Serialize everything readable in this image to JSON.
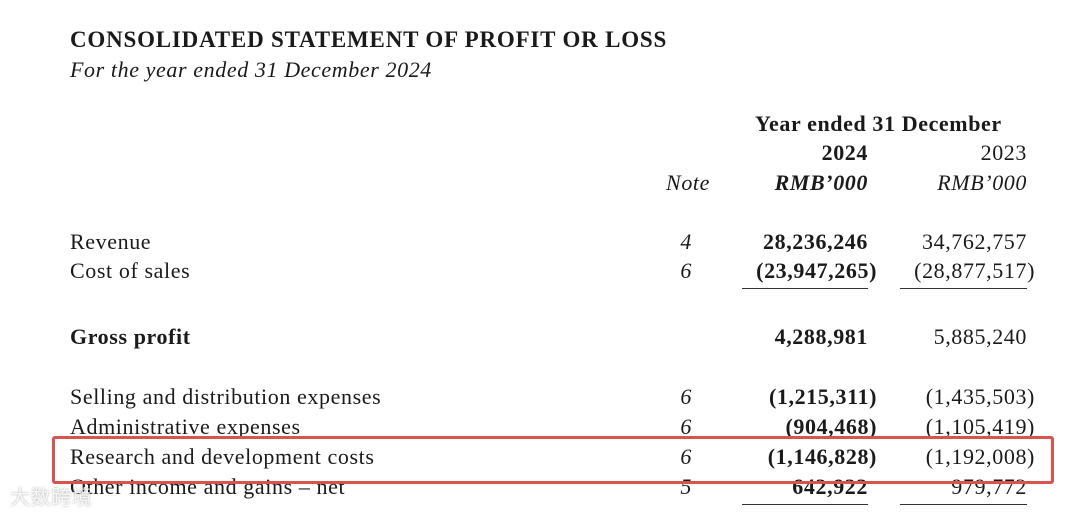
{
  "header": {
    "title": "CONSOLIDATED STATEMENT OF PROFIT OR LOSS",
    "subtitle": "For the year ended 31 December 2024"
  },
  "columns": {
    "period": "Year ended 31 December",
    "note": "Note",
    "current_year": "2024",
    "prior_year": "2023",
    "current_unit": "RMB’000",
    "prior_unit": "RMB’000"
  },
  "rows": [
    {
      "label": "Revenue",
      "note": "4",
      "current": "28,236,246",
      "prior": "34,762,757"
    },
    {
      "label": "Cost of sales",
      "note": "6",
      "current": "(23,947,265)",
      "prior": "(28,877,517)",
      "underline": true
    },
    {
      "label": "Gross profit",
      "current": "4,288,981",
      "prior": "5,885,240",
      "bold": true
    },
    {
      "label": "Selling and distribution expenses",
      "note": "6",
      "current": "(1,215,311)",
      "prior": "(1,435,503)"
    },
    {
      "label": "Administrative expenses",
      "note": "6",
      "current": "(904,468)",
      "prior": "(1,105,419)"
    },
    {
      "label": "Research and development costs",
      "note": "6",
      "current": "(1,146,828)",
      "prior": "(1,192,008)",
      "highlight": true
    },
    {
      "label": "Other income and gains – net",
      "note": "5",
      "current": "642,922",
      "prior": "979,772",
      "underline": true
    }
  ],
  "watermark": "大数跨境"
}
